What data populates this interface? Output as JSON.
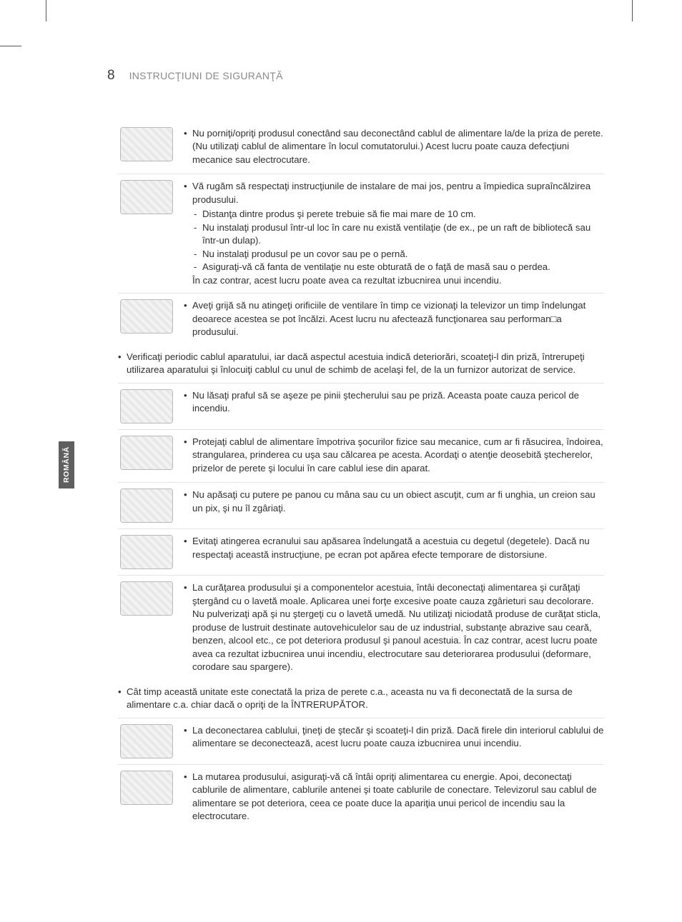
{
  "page": {
    "number": "8",
    "header_title": "INSTRUCŢIUNI DE SIGURANŢĂ",
    "side_tab": "ROMÂNĂ"
  },
  "rows": [
    {
      "icon": "power-cord-icon",
      "bullets": [
        "Nu porniţi/opriţi produsul conectând sau deconectând cablul de alimentare la/de la priza de perete. (Nu utilizaţi cablul de alimentare în locul comutatorului.) Acest lucru poate cauza defecţiuni mecanice sau electrocutare."
      ]
    },
    {
      "icon": "ventilation-icon",
      "bullets": [
        "Vă rugăm să respectaţi instrucţiunile de instalare de mai jos, pentru a împiedica supraîncălzirea produsului."
      ],
      "subs": [
        "Distanţa dintre produs şi perete trebuie să fie mai mare de 10 cm.",
        "Nu instalaţi produsul într-ul loc în care nu există ventilaţie (de ex., pe un raft de bibliotecă sau într-un dulap).",
        "Nu instalaţi produsul pe un covor sau pe o pernă.",
        "Asiguraţi-vă că fanta de ventilaţie nu este obturată de o faţă de masă sau o perdea."
      ],
      "trailer": "În caz contrar, acest lucru poate avea ca rezultat izbucnirea unui incendiu."
    },
    {
      "icon": "hot-vent-icon",
      "bullets": [
        "Aveţi grijă să nu atingeţi orificiile de ventilare în timp ce vizionaţi la televizor un timp îndelungat deoarece acestea se pot încălzi. Acest lucru nu afectează funcţionarea sau performan□a produsului."
      ],
      "no_border": true
    },
    {
      "fullwidth": true,
      "bullets": [
        "Verificaţi periodic cablul aparatului, iar dacă aspectul acestuia indică deteriorări, scoateţi-l din priză, întrerupeţi utilizarea aparatului şi înlocuiţi cablul cu unul de schimb de acelaşi fel, de la un furnizor autorizat de service."
      ]
    },
    {
      "icon": "dust-plug-icon",
      "bullets": [
        "Nu lăsaţi praful să se aşeze pe pinii ştecherului sau pe priză. Aceasta poate cauza pericol de incendiu."
      ]
    },
    {
      "icon": "cable-protect-icon",
      "bullets": [
        "Protejaţi cablul de alimentare împotriva şocurilor fizice sau mecanice, cum ar fi răsucirea, îndoirea, strangularea, prinderea cu uşa sau călcarea pe acesta. Acordaţi o atenţie deosebită ştecherelor, prizelor de perete şi locului în care cablul iese din aparat."
      ]
    },
    {
      "icon": "no-press-icon",
      "bullets": [
        "Nu apăsaţi cu putere pe panou cu mâna sau cu un obiect ascuţit, cum ar fi unghia, un creion sau un pix, şi nu îl zgâriaţi."
      ]
    },
    {
      "icon": "no-touch-icon",
      "bullets": [
        "Evitaţi atingerea ecranului sau apăsarea îndelungată a acestuia cu degetul (degetele). Dacă nu respectaţi această instrucţiune, pe ecran pot apărea efecte temporare de distorsiune."
      ]
    },
    {
      "icon": "cleaning-icon",
      "bullets": [
        "La curăţarea produsului şi a componentelor acestuia, întâi deconectaţi alimentarea şi curăţaţi ştergând cu o lavetă moale. Aplicarea unei forţe excesive poate cauza zgârieturi sau decolorare. Nu pulverizaţi apă şi nu ştergeţi cu o lavetă umedă. Nu utilizaţi niciodată produse de curăţat sticla, produse de lustruit destinate autovehiculelor sau de uz industrial, substanţe abrazive sau ceară, benzen, alcool etc., ce pot deteriora produsul şi panoul acestuia. În caz contrar, acest lucru poate avea ca rezultat izbucnirea unui incendiu, electrocutare sau deteriorarea produsului (deformare, corodare sau spargere)."
      ],
      "no_border": true
    },
    {
      "fullwidth": true,
      "bullets": [
        "Cât timp această unitate este conectată la priza de perete c.a., aceasta nu va fi deconectată de la sursa de alimentare c.a. chiar dacă o opriţi de la ÎNTRERUPĂTOR."
      ]
    },
    {
      "icon": "unplug-icon",
      "bullets": [
        "La deconectarea cablului, ţineţi de ştecăr şi scoateţi-l din priză. Dacă firele din interiorul cablului de alimentare se deconectează, acest lucru poate cauza izbucnirea unui incendiu."
      ]
    },
    {
      "icon": "move-product-icon",
      "bullets": [
        "La mutarea produsului, asiguraţi-vă că întâi opriţi alimentarea cu energie. Apoi, deconectaţi cablurile de alimentare, cablurile antenei şi toate cablurile de conectare. Televizorul sau cablul de alimentare se pot deteriora, ceea ce poate duce la apariţia unui pericol de incendiu sau la electrocutare."
      ],
      "no_border": true
    }
  ],
  "style": {
    "body_color": "#2f2f2f",
    "muted_color": "#898989",
    "divider_color": "#e3e3e3",
    "tab_bg": "#5f5f5f",
    "font_size_body": 13.2,
    "font_size_header": 14,
    "font_size_pagenum": 19
  }
}
